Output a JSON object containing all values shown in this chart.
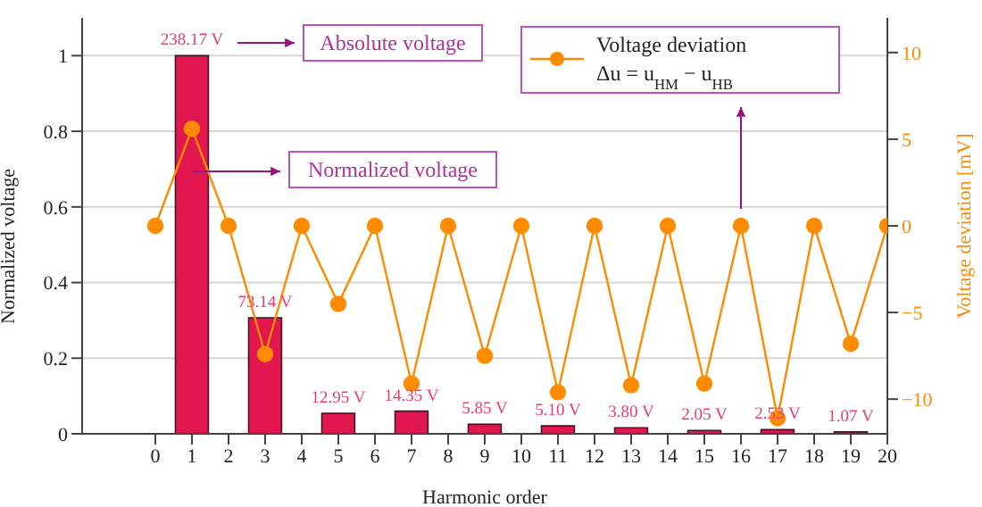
{
  "chart_data": {
    "type": "bar",
    "xlabel": "Harmonic order",
    "ylabel": "Normalized voltage",
    "y2label": "Voltage deviation [mV]",
    "xlim": [
      -2,
      20
    ],
    "xticks": [
      0,
      1,
      2,
      3,
      4,
      5,
      6,
      7,
      8,
      9,
      10,
      11,
      12,
      13,
      14,
      15,
      16,
      17,
      18,
      19,
      20
    ],
    "ylim": [
      0,
      1.1
    ],
    "yticks": [
      0,
      0.2,
      0.4,
      0.6,
      0.8,
      1
    ],
    "y2lim": [
      -12,
      12
    ],
    "y2ticks": [
      {
        "value": -10,
        "label": "−10"
      },
      {
        "value": -5,
        "label": "−5"
      },
      0,
      5,
      10
    ],
    "grid": "y",
    "legend": "top right",
    "annotations": [
      "Absolute voltage",
      "Normalized voltage",
      {
        "text": "238.17 V",
        "x": 1,
        "y": 1
      },
      {
        "text": "73.14 V",
        "x": 3,
        "y": 0.307
      },
      {
        "text": "12.95 V",
        "x": 5,
        "y": 0.054
      },
      {
        "text": "14.35 V",
        "x": 7,
        "y": 0.06
      },
      {
        "text": "5.85 V",
        "x": 9,
        "y": 0.025
      },
      {
        "text": "5.10 V",
        "x": 11,
        "y": 0.021
      },
      {
        "text": "3.80 V",
        "x": 13,
        "y": 0.016
      },
      {
        "text": "2.05 V",
        "x": 15,
        "y": 0.009
      },
      {
        "text": "2.53 V",
        "x": 17,
        "y": 0.011
      },
      {
        "text": "1.07 V",
        "x": 19,
        "y": 0.005
      }
    ],
    "series": [
      {
        "color": "#e3174f",
        "x": [
          1,
          3,
          5,
          7,
          9,
          11,
          13,
          15,
          17,
          19
        ],
        "values": [
          1,
          0.307,
          0.054,
          0.06,
          0.025,
          0.021,
          0.016,
          0.009,
          0.011,
          0.005
        ]
      },
      {
        "type": "line",
        "name": "Voltage deviation\nΔu = u$_{HM}$ − u$_{HB}$",
        "color": "#ff8c00",
        "axis": "y2",
        "marker": "circle",
        "x": [
          0,
          1,
          2,
          3,
          4,
          5,
          6,
          7,
          8,
          9,
          10,
          11,
          12,
          13,
          14,
          15,
          16,
          17,
          18,
          19,
          20
        ],
        "values": [
          0,
          5.6,
          0,
          -7.4,
          0,
          -4.5,
          0,
          -9.1,
          0,
          -7.5,
          0,
          -9.6,
          0,
          -9.2,
          0,
          -9.1,
          0,
          -11.1,
          0,
          -6.8,
          0
        ]
      }
    ]
  }
}
